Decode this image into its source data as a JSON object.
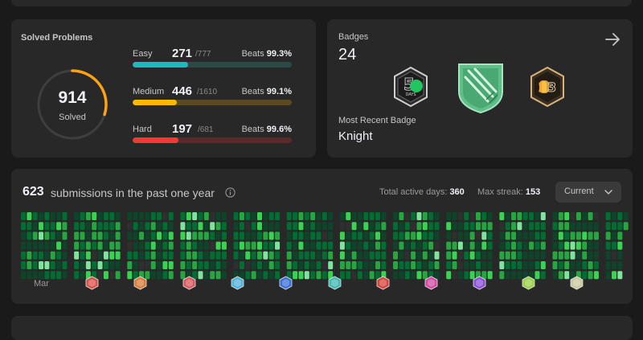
{
  "solved": {
    "title": "Solved Problems",
    "total": "914",
    "total_label": "Solved",
    "difficulties": [
      {
        "name": "Easy",
        "solved": "271",
        "total": "/777",
        "beats_label": "Beats",
        "beats": "99.3%",
        "fraction": 0.349,
        "color": "#1cbaba",
        "track": "#2a4a46"
      },
      {
        "name": "Medium",
        "solved": "446",
        "total": "/1610",
        "beats_label": "Beats",
        "beats": "99.1%",
        "fraction": 0.277,
        "color": "#ffb700",
        "track": "#5a4a1e"
      },
      {
        "name": "Hard",
        "solved": "197",
        "total": "/681",
        "beats_label": "Beats",
        "beats": "99.6%",
        "fraction": 0.289,
        "color": "#f63737",
        "track": "#5a2a2a"
      }
    ]
  },
  "badges": {
    "title": "Badges",
    "count": "24",
    "recent_label": "Most Recent Badge",
    "recent_name": "Knight",
    "items": [
      "50-days-badge",
      "knight-badge",
      "annual-2023-badge"
    ],
    "day_badge_text": "DAYS"
  },
  "calendar": {
    "count": "623",
    "text": "submissions in the past one year",
    "active_label": "Total active days:",
    "active_value": "360",
    "streak_label": "Max streak:",
    "streak_value": "153",
    "select_value": "Current",
    "months": [
      "Mar"
    ],
    "month_icons": [
      {
        "name": "monthly-badge-apr-icon",
        "color": "#d8524b"
      },
      {
        "name": "monthly-badge-may-icon",
        "color": "#d97c3b"
      },
      {
        "name": "monthly-badge-jun-icon",
        "color": "#d9575a"
      },
      {
        "name": "monthly-badge-jul-icon",
        "color": "#4fb3d9"
      },
      {
        "name": "monthly-badge-aug-icon",
        "color": "#3d6fd6"
      },
      {
        "name": "monthly-badge-sep-icon",
        "color": "#3fb8b3"
      },
      {
        "name": "monthly-badge-oct-icon",
        "color": "#d3453c"
      },
      {
        "name": "monthly-badge-nov-icon",
        "color": "#d24aa3"
      },
      {
        "name": "monthly-badge-dec-icon",
        "color": "#8a4fd6"
      },
      {
        "name": "monthly-badge-jan-icon",
        "color": "#9ad14a"
      },
      {
        "name": "monthly-badge-feb-icon",
        "color": "#c9c9a0"
      }
    ]
  }
}
